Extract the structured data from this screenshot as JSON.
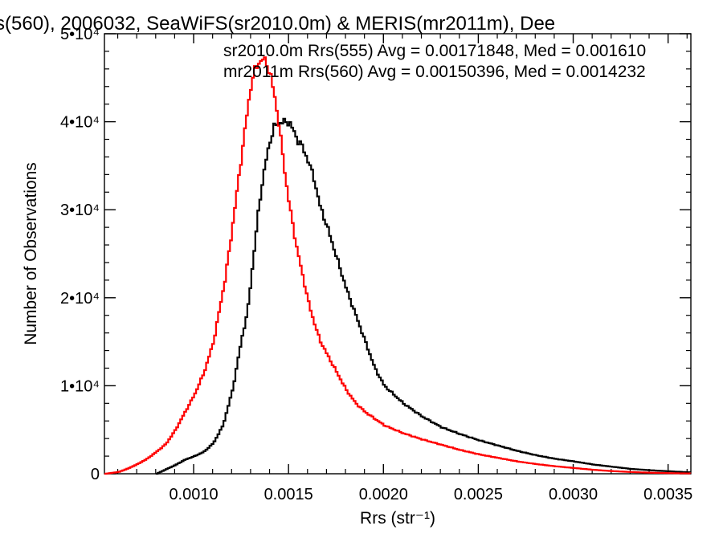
{
  "chart_data": {
    "type": "line",
    "title": "s(560), 2006032, SeaWiFS(sr2010.0m) & MERIS(mr2011m), Dee",
    "xlabel": "Rrs (str⁻¹)",
    "ylabel": "Number of Observations",
    "xlim": [
      0.00053,
      0.00362
    ],
    "ylim": [
      0,
      50000
    ],
    "xticks": [
      "0.0010",
      "0.0015",
      "0.0020",
      "0.0025",
      "0.0030",
      "0.0035"
    ],
    "yticks": [
      "0",
      "1•10⁴",
      "2•10⁴",
      "3•10⁴",
      "4•10⁴",
      "5•10⁴"
    ],
    "grid": false,
    "legend_placement": "top-right",
    "series": [
      {
        "name": "sr2010.0m Rrs(555) Avg = 0.00171848, Med = 0.001610",
        "color": "#000000",
        "x": [
          0.0008,
          0.00085,
          0.0009,
          0.00095,
          0.001,
          0.00105,
          0.0011,
          0.00115,
          0.0012,
          0.00125,
          0.00128,
          0.0013,
          0.00132,
          0.00134,
          0.00136,
          0.00138,
          0.0014,
          0.00142,
          0.00144,
          0.00146,
          0.00148,
          0.0015,
          0.00152,
          0.00154,
          0.00156,
          0.00158,
          0.0016,
          0.00163,
          0.00166,
          0.0017,
          0.00175,
          0.0018,
          0.00185,
          0.0019,
          0.00195,
          0.002,
          0.0021,
          0.0022,
          0.0023,
          0.0024,
          0.0025,
          0.0026,
          0.0027,
          0.0028,
          0.0029,
          0.003,
          0.0031,
          0.0032,
          0.0033,
          0.0034,
          0.0035,
          0.00362
        ],
        "values": [
          0,
          500,
          1000,
          1600,
          2000,
          2500,
          3500,
          5500,
          9500,
          15500,
          18500,
          22500,
          26500,
          30500,
          33500,
          36000,
          38000,
          39400,
          39800,
          40000,
          39900,
          40000,
          39000,
          38000,
          37500,
          36500,
          35500,
          33500,
          30500,
          28000,
          24500,
          21000,
          18000,
          15000,
          12000,
          10000,
          8000,
          6500,
          5300,
          4500,
          3800,
          3200,
          2600,
          2100,
          1700,
          1400,
          1050,
          800,
          550,
          400,
          280,
          150
        ]
      },
      {
        "name": "mr2011m Rrs(560) Avg = 0.00150396, Med = 0.0014232",
        "color": "#ff0000",
        "x": [
          0.00053,
          0.0006,
          0.00065,
          0.0007,
          0.00075,
          0.0008,
          0.00085,
          0.0009,
          0.00095,
          0.001,
          0.00105,
          0.0011,
          0.00113,
          0.00116,
          0.00119,
          0.00122,
          0.00125,
          0.00128,
          0.0013,
          0.00132,
          0.00134,
          0.00136,
          0.00138,
          0.0014,
          0.00142,
          0.00144,
          0.00146,
          0.00148,
          0.0015,
          0.00152,
          0.00154,
          0.00156,
          0.00158,
          0.0016,
          0.00163,
          0.00166,
          0.0017,
          0.00175,
          0.0018,
          0.00185,
          0.0019,
          0.002,
          0.0021,
          0.0022,
          0.0023,
          0.0024,
          0.0025,
          0.0026,
          0.0027,
          0.0028,
          0.0029,
          0.003,
          0.0031,
          0.0032,
          0.0033,
          0.0034,
          0.0035,
          0.00362
        ],
        "values": [
          0,
          200,
          600,
          1100,
          1700,
          2500,
          3400,
          5000,
          7000,
          9000,
          11500,
          15000,
          18500,
          22000,
          26500,
          31500,
          36500,
          41500,
          44500,
          46000,
          46800,
          47100,
          46600,
          45300,
          43000,
          40500,
          37000,
          33500,
          30500,
          28000,
          25500,
          23500,
          21500,
          19500,
          17200,
          15200,
          13500,
          11500,
          9500,
          8000,
          7000,
          5500,
          4600,
          3900,
          3300,
          2700,
          2200,
          1800,
          1400,
          1100,
          850,
          650,
          450,
          300,
          200,
          120,
          70,
          30
        ]
      }
    ]
  }
}
